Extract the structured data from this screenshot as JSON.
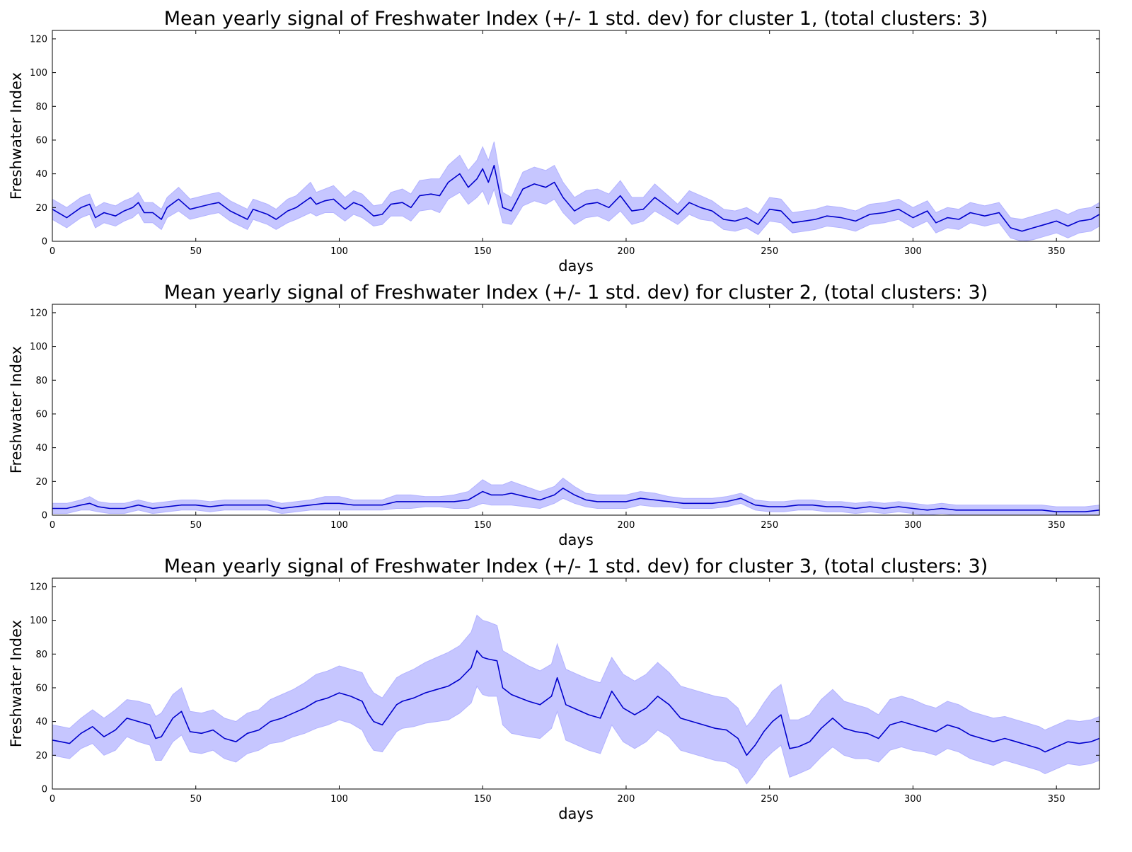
{
  "chart_data": [
    {
      "type": "line",
      "title": "Mean yearly signal of Freshwater Index (+/- 1 std. dev) for cluster 1, (total clusters: 3)",
      "xlabel": "days",
      "ylabel": "Freshwater Index",
      "xlim": [
        0,
        365
      ],
      "ylim": [
        0,
        125
      ],
      "x_ticks": [
        0,
        50,
        100,
        150,
        200,
        250,
        300,
        350
      ],
      "y_ticks": [
        0,
        20,
        40,
        60,
        80,
        100,
        120
      ],
      "grid": false,
      "line_color": "#0000cc",
      "band_color": "#b3b3ff",
      "series": [
        {
          "x": [
            0,
            5,
            10,
            13,
            15,
            18,
            22,
            25,
            28,
            30,
            32,
            35,
            38,
            40,
            44,
            48,
            55,
            58,
            62,
            68,
            70,
            75,
            78,
            82,
            85,
            90,
            92,
            95,
            98,
            102,
            105,
            108,
            112,
            115,
            118,
            122,
            125,
            128,
            132,
            135,
            138,
            142,
            145,
            148,
            150,
            152,
            154,
            157,
            160,
            164,
            168,
            172,
            175,
            178,
            182,
            186,
            190,
            194,
            198,
            202,
            206,
            210,
            214,
            218,
            222,
            226,
            230,
            234,
            238,
            242,
            246,
            250,
            254,
            258,
            262,
            266,
            270,
            275,
            280,
            285,
            290,
            295,
            300,
            305,
            308,
            312,
            316,
            320,
            325,
            330,
            334,
            338,
            342,
            346,
            350,
            354,
            358,
            362,
            365
          ],
          "mean": [
            19,
            14,
            20,
            22,
            14,
            17,
            15,
            18,
            20,
            23,
            17,
            17,
            13,
            20,
            25,
            19,
            22,
            23,
            18,
            13,
            19,
            16,
            13,
            18,
            20,
            26,
            22,
            24,
            25,
            19,
            23,
            21,
            15,
            16,
            22,
            23,
            20,
            27,
            28,
            27,
            35,
            40,
            32,
            37,
            43,
            35,
            45,
            20,
            18,
            31,
            34,
            32,
            35,
            26,
            18,
            22,
            23,
            20,
            27,
            18,
            19,
            26,
            21,
            16,
            23,
            20,
            18,
            13,
            12,
            14,
            10,
            19,
            18,
            11,
            12,
            13,
            15,
            14,
            12,
            16,
            17,
            19,
            14,
            18,
            11,
            14,
            13,
            17,
            15,
            17,
            8,
            6,
            8,
            10,
            12,
            9,
            12,
            13,
            16
          ],
          "std": [
            6,
            6,
            6,
            6,
            6,
            6,
            6,
            6,
            6,
            6,
            6,
            6,
            6,
            6,
            7,
            6,
            6,
            6,
            6,
            6,
            6,
            6,
            6,
            7,
            7,
            9,
            7,
            7,
            8,
            7,
            7,
            7,
            6,
            6,
            7,
            8,
            8,
            9,
            9,
            10,
            10,
            11,
            10,
            11,
            13,
            13,
            14,
            9,
            8,
            10,
            10,
            10,
            10,
            9,
            8,
            8,
            8,
            8,
            9,
            8,
            7,
            8,
            7,
            6,
            7,
            7,
            6,
            6,
            6,
            6,
            6,
            7,
            7,
            6,
            6,
            6,
            6,
            6,
            6,
            6,
            6,
            6,
            6,
            6,
            6,
            6,
            6,
            6,
            6,
            6,
            6,
            7,
            7,
            7,
            7,
            7,
            7,
            7,
            7
          ]
        }
      ]
    },
    {
      "type": "line",
      "title": "Mean yearly signal of Freshwater Index (+/- 1 std. dev) for cluster 2, (total clusters: 3)",
      "xlabel": "days",
      "ylabel": "Freshwater Index",
      "xlim": [
        0,
        365
      ],
      "ylim": [
        0,
        125
      ],
      "x_ticks": [
        0,
        50,
        100,
        150,
        200,
        250,
        300,
        350
      ],
      "y_ticks": [
        0,
        20,
        40,
        60,
        80,
        100,
        120
      ],
      "grid": false,
      "line_color": "#0000cc",
      "band_color": "#b3b3ff",
      "series": [
        {
          "x": [
            0,
            5,
            10,
            13,
            16,
            20,
            25,
            30,
            35,
            40,
            45,
            50,
            55,
            60,
            65,
            70,
            75,
            80,
            85,
            90,
            95,
            100,
            105,
            110,
            115,
            120,
            125,
            130,
            135,
            140,
            145,
            150,
            153,
            157,
            160,
            165,
            170,
            175,
            178,
            182,
            186,
            190,
            195,
            200,
            205,
            210,
            215,
            220,
            225,
            230,
            235,
            240,
            245,
            250,
            255,
            260,
            265,
            270,
            275,
            280,
            285,
            290,
            295,
            300,
            305,
            310,
            315,
            320,
            325,
            330,
            335,
            340,
            345,
            350,
            355,
            360,
            365
          ],
          "mean": [
            4,
            4,
            6,
            7,
            5,
            4,
            4,
            6,
            4,
            5,
            6,
            6,
            5,
            6,
            6,
            6,
            6,
            4,
            5,
            6,
            7,
            7,
            6,
            6,
            6,
            8,
            8,
            8,
            8,
            8,
            9,
            14,
            12,
            12,
            13,
            11,
            9,
            12,
            16,
            12,
            9,
            8,
            8,
            8,
            10,
            9,
            8,
            7,
            7,
            7,
            8,
            10,
            6,
            5,
            5,
            6,
            6,
            5,
            5,
            4,
            5,
            4,
            5,
            4,
            3,
            4,
            3,
            3,
            3,
            3,
            3,
            3,
            3,
            2,
            2,
            2,
            3
          ],
          "std": [
            3,
            3,
            3,
            4,
            3,
            3,
            3,
            3,
            3,
            3,
            3,
            3,
            3,
            3,
            3,
            3,
            3,
            3,
            3,
            3,
            4,
            4,
            3,
            3,
            3,
            4,
            4,
            3,
            3,
            4,
            5,
            7,
            6,
            6,
            7,
            6,
            5,
            5,
            6,
            5,
            4,
            4,
            4,
            4,
            4,
            4,
            3,
            3,
            3,
            3,
            3,
            3,
            3,
            3,
            3,
            3,
            3,
            3,
            3,
            3,
            3,
            3,
            3,
            3,
            3,
            3,
            3,
            3,
            3,
            3,
            3,
            3,
            3,
            3,
            3,
            3,
            3
          ]
        }
      ]
    },
    {
      "type": "line",
      "title": "Mean yearly signal of Freshwater Index (+/- 1 std. dev) for cluster 3, (total clusters: 3)",
      "xlabel": "days",
      "ylabel": "Freshwater Index",
      "xlim": [
        0,
        365
      ],
      "ylim": [
        0,
        125
      ],
      "x_ticks": [
        0,
        50,
        100,
        150,
        200,
        250,
        300,
        350
      ],
      "y_ticks": [
        0,
        20,
        40,
        60,
        80,
        100,
        120
      ],
      "grid": false,
      "line_color": "#0000cc",
      "band_color": "#b3b3ff",
      "series": [
        {
          "x": [
            0,
            3,
            6,
            10,
            14,
            18,
            22,
            26,
            30,
            34,
            36,
            38,
            42,
            45,
            48,
            52,
            56,
            60,
            64,
            68,
            72,
            76,
            80,
            84,
            88,
            92,
            96,
            100,
            104,
            108,
            110,
            112,
            115,
            120,
            122,
            126,
            130,
            134,
            138,
            142,
            146,
            148,
            150,
            152,
            155,
            157,
            160,
            163,
            166,
            170,
            174,
            176,
            179,
            183,
            187,
            191,
            195,
            199,
            203,
            207,
            211,
            215,
            219,
            223,
            227,
            231,
            235,
            239,
            242,
            245,
            248,
            251,
            254,
            257,
            260,
            264,
            268,
            272,
            276,
            280,
            284,
            288,
            292,
            296,
            300,
            304,
            308,
            312,
            316,
            320,
            324,
            328,
            332,
            336,
            340,
            344,
            346,
            350,
            354,
            358,
            362,
            365
          ],
          "mean": [
            29,
            28,
            27,
            33,
            37,
            31,
            35,
            42,
            40,
            38,
            30,
            31,
            42,
            46,
            34,
            33,
            35,
            30,
            28,
            33,
            35,
            40,
            42,
            45,
            48,
            52,
            54,
            57,
            55,
            52,
            45,
            40,
            38,
            50,
            52,
            54,
            57,
            59,
            61,
            65,
            72,
            82,
            78,
            77,
            76,
            60,
            56,
            54,
            52,
            50,
            55,
            66,
            50,
            47,
            44,
            42,
            58,
            48,
            44,
            48,
            55,
            50,
            42,
            40,
            38,
            36,
            35,
            30,
            20,
            26,
            34,
            40,
            44,
            24,
            25,
            28,
            36,
            42,
            36,
            34,
            33,
            30,
            38,
            40,
            38,
            36,
            34,
            38,
            36,
            32,
            30,
            28,
            30,
            28,
            26,
            24,
            22,
            25,
            28,
            27,
            28,
            30
          ],
          "std": [
            9,
            9,
            9,
            9,
            10,
            11,
            12,
            11,
            12,
            12,
            13,
            14,
            14,
            14,
            12,
            12,
            12,
            12,
            12,
            12,
            12,
            13,
            14,
            14,
            15,
            16,
            16,
            16,
            16,
            17,
            17,
            17,
            16,
            16,
            16,
            17,
            18,
            19,
            20,
            20,
            21,
            21,
            22,
            22,
            21,
            22,
            23,
            22,
            21,
            20,
            19,
            20,
            21,
            21,
            21,
            21,
            20,
            20,
            20,
            20,
            20,
            19,
            19,
            19,
            19,
            19,
            19,
            18,
            17,
            17,
            17,
            18,
            18,
            17,
            16,
            16,
            17,
            17,
            16,
            16,
            15,
            14,
            15,
            15,
            15,
            14,
            14,
            14,
            14,
            14,
            14,
            14,
            13,
            13,
            13,
            13,
            13,
            13,
            13,
            13,
            13,
            13
          ]
        }
      ]
    }
  ]
}
